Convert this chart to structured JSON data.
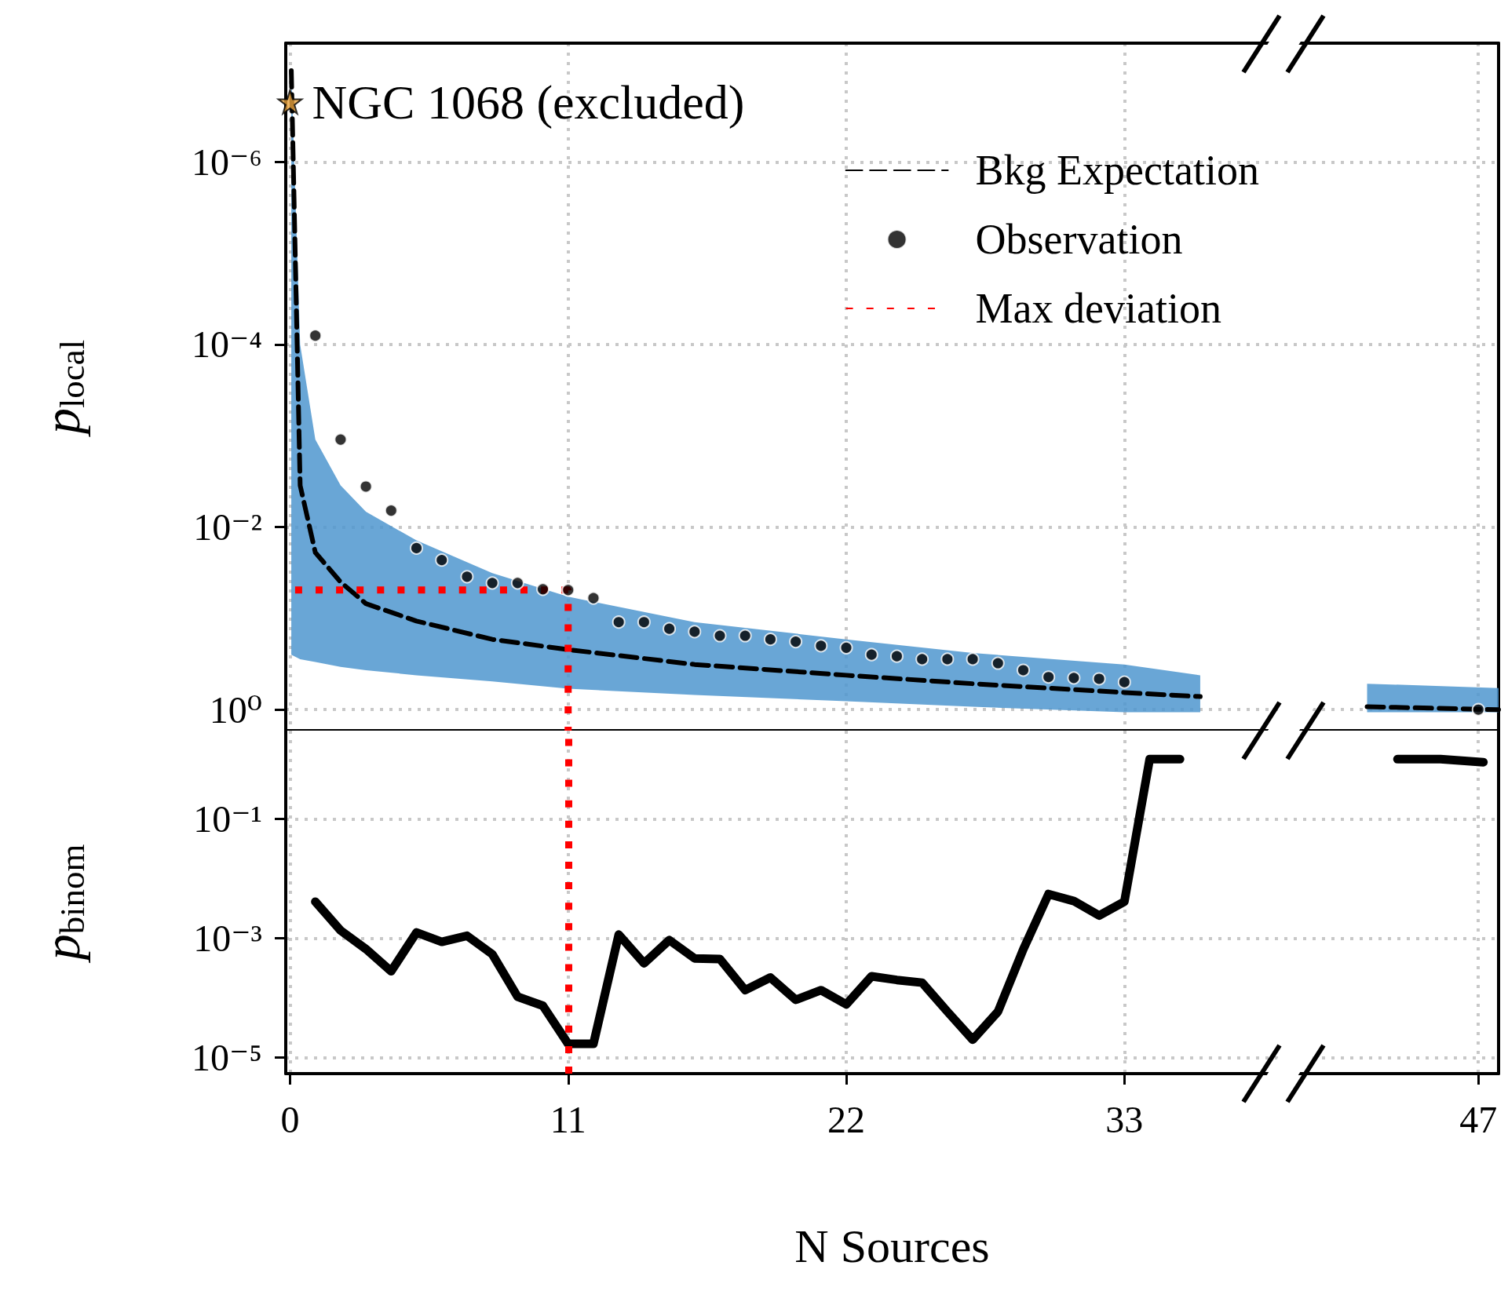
{
  "chart_data": [
    {
      "type": "line",
      "ylabel": "p$_{local}$",
      "xlim": [
        -0.17,
        47.8
      ],
      "xticks": [
        0,
        11,
        22,
        33,
        47
      ],
      "ylim": [
        1.7,
        5e-08
      ],
      "yticks": [
        {
          "value": 1e-06,
          "label": "10⁻⁶"
        },
        {
          "value": 0.0001,
          "label": "10⁻⁴"
        },
        {
          "value": 0.01,
          "label": "10⁻²"
        },
        {
          "value": 1,
          "label": "10⁰"
        }
      ],
      "log": "y",
      "grid": true,
      "tick_labels": "y",
      "legend": "top right",
      "annotations": [
        {
          "text": "NGC 1068 (excluded)",
          "x": 0,
          "y": 2.2e-07
        }
      ],
      "series": [
        {
          "name": "Bkg Expectation",
          "color": "#000000",
          "line_style": "dashed",
          "marker": "none",
          "x": [
            0.05,
            0.4,
            1,
            2,
            3,
            5,
            8,
            11,
            16,
            22,
            27,
            33,
            36,
            39,
            42.6,
            47.8
          ],
          "values": [
            1e-07,
            0.0035,
            0.019,
            0.04,
            0.069,
            0.107,
            0.17,
            0.22,
            0.32,
            0.42,
            0.52,
            0.65,
            0.72,
            null,
            0.93,
            1.0
          ],
          "lower": [
            1e-07,
            0.0001,
            0.0011,
            0.0035,
            0.0068,
            0.014,
            0.032,
            0.058,
            0.11,
            0.17,
            0.24,
            0.32,
            0.42,
            null,
            0.52,
            0.58
          ],
          "upper": [
            0.25,
            0.28,
            0.3,
            0.34,
            0.37,
            0.42,
            0.49,
            0.59,
            0.69,
            0.81,
            0.93,
            1.07,
            1.07,
            null,
            1.07,
            1.07
          ]
        },
        {
          "name": "Observation",
          "type": "scatter",
          "color": "#000000",
          "marker": "circle",
          "x": [
            1,
            2,
            3,
            4,
            5,
            6,
            7,
            8,
            9,
            10,
            11,
            12,
            13,
            14,
            15,
            16,
            17,
            18,
            19,
            20,
            21,
            22,
            23,
            24,
            25,
            26,
            27,
            28,
            29,
            30,
            31,
            32,
            33,
            47
          ],
          "values": [
            8e-05,
            0.0011,
            0.0036,
            0.0066,
            0.017,
            0.023,
            0.035,
            0.041,
            0.041,
            0.048,
            0.049,
            0.06,
            0.11,
            0.11,
            0.13,
            0.14,
            0.155,
            0.155,
            0.17,
            0.18,
            0.2,
            0.21,
            0.25,
            0.26,
            0.28,
            0.28,
            0.28,
            0.31,
            0.37,
            0.44,
            0.45,
            0.46,
            0.5,
            1.0
          ]
        },
        {
          "name": "Max deviation",
          "color": "#ff0000",
          "line_style": "dotted",
          "marker": "none",
          "x": [
            0.2,
            11,
            11
          ],
          "values": [
            0.049,
            0.049,
            1.7
          ]
        },
        {
          "type": "scatter",
          "color": "#e8a33d",
          "marker": "star",
          "x": [
            0
          ],
          "values": [
            2.2e-07
          ]
        }
      ]
    },
    {
      "type": "line",
      "ylabel": "p$_{binom}$",
      "xlabel": "N Sources",
      "xlim": [
        -0.17,
        47.8
      ],
      "xticks": [
        0,
        11,
        22,
        33,
        47
      ],
      "ylim": [
        5.4e-06,
        3
      ],
      "yticks": [
        {
          "value": 1e-05,
          "label": "10⁻⁵"
        },
        {
          "value": 0.001,
          "label": "10⁻³"
        },
        {
          "value": 0.1,
          "label": "10⁻¹"
        }
      ],
      "log": "y",
      "grid": true,
      "marker": "none",
      "ref_lines": [
        {
          "axis": "x",
          "value": 11,
          "color": "#ff0000",
          "line_style": "dotted"
        }
      ],
      "series": [
        {
          "color": "#000000",
          "x": [
            1,
            2,
            3,
            4,
            5,
            6,
            7,
            8,
            9,
            10,
            11,
            12,
            13,
            14,
            15,
            16,
            17,
            18,
            19,
            20,
            21,
            22,
            23,
            24,
            25,
            26,
            27,
            28,
            29,
            30,
            31,
            32,
            33,
            34,
            35.2,
            39,
            43.8,
            45.5,
            47.2
          ],
          "values": [
            0.0041,
            0.00135,
            0.00066,
            0.00028,
            0.00125,
            0.00087,
            0.0011,
            0.00054,
            0.000105,
            7.4e-05,
            1.7e-05,
            1.7e-05,
            0.00115,
            0.00038,
            0.00093,
            0.00046,
            0.00045,
            0.000135,
            0.00022,
            9.3e-05,
            0.000135,
            7.8e-05,
            0.00023,
            0.0002,
            0.00018,
            5.9e-05,
            2e-05,
            5.9e-05,
            0.00065,
            0.0055,
            0.0042,
            0.0024,
            0.0041,
            1.0,
            1.0,
            null,
            1.0,
            1.0,
            0.89
          ]
        }
      ]
    }
  ]
}
